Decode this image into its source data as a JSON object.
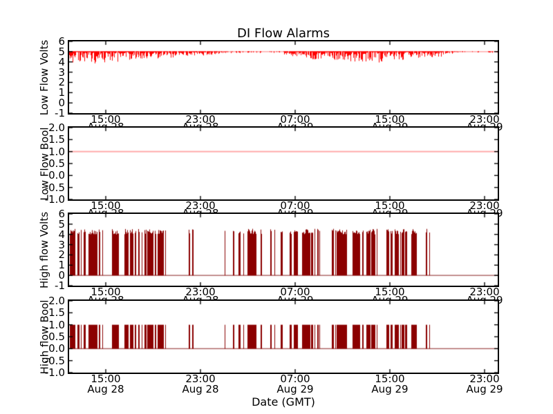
{
  "title": "DI Flow Alarms",
  "x_axis": {
    "label": "Date (GMT)",
    "ticks": [
      {
        "frac": 0.0855,
        "time": "15:00",
        "date": "Aug 28"
      },
      {
        "frac": 0.3065,
        "time": "23:00",
        "date": "Aug 28"
      },
      {
        "frac": 0.5274,
        "time": "07:00",
        "date": "Aug 29"
      },
      {
        "frac": 0.7484,
        "time": "15:00",
        "date": "Aug 29"
      },
      {
        "frac": 0.9694,
        "time": "23:00",
        "date": "Aug 29"
      }
    ]
  },
  "colors": {
    "bright_red": "#ff0000",
    "pale_red": "#ffaaaa",
    "dark_red": "#8b0000",
    "faded_dark_red": "#aa6060",
    "axes": "#000000",
    "background": "#ffffff"
  },
  "chart_data": [
    {
      "type": "line",
      "title": "DI Flow Alarms",
      "ylabel": "Low Flow Volts",
      "ylim": [
        -1,
        6
      ],
      "grid": false,
      "legend": false,
      "yticks": [
        {
          "label": "6",
          "v": 6
        },
        {
          "label": "5",
          "v": 5
        },
        {
          "label": "4",
          "v": 4
        },
        {
          "label": "3",
          "v": 3
        },
        {
          "label": "2",
          "v": 2
        },
        {
          "label": "1",
          "v": 1
        },
        {
          "label": "0",
          "v": 0
        },
        {
          "label": "-1",
          "v": -1
        }
      ],
      "series": [
        {
          "name": "Low Flow Volts",
          "color": "#ff0000",
          "baseline_color": "#ffaaaa",
          "render": "noise_dips",
          "base_value": 5.0,
          "description": "Holds ~5 V with dense downward noise bursts to ~3.7-4.3 V from ~12:00 Aug 28 to ~23:30 Aug 28 and from ~05:00 Aug 29 to ~19:30 Aug 29; nearly flat at 5 V otherwise.",
          "segments": [
            {
              "f0": 0.0,
              "f1": 0.205,
              "density": 0.97,
              "dip0": 1.3,
              "dip1": 0.7
            },
            {
              "f0": 0.205,
              "f1": 0.35,
              "density": 0.9,
              "dip0": 0.7,
              "dip1": 0.3
            },
            {
              "f0": 0.35,
              "f1": 0.5,
              "density": 0.35,
              "dip0": 0.12,
              "dip1": 0.12
            },
            {
              "f0": 0.5,
              "f1": 0.56,
              "density": 0.9,
              "dip0": 0.3,
              "dip1": 0.65
            },
            {
              "f0": 0.56,
              "f1": 0.72,
              "density": 0.97,
              "dip0": 0.7,
              "dip1": 1.05
            },
            {
              "f0": 0.72,
              "f1": 0.87,
              "density": 0.97,
              "dip0": 1.05,
              "dip1": 0.45
            },
            {
              "f0": 0.87,
              "f1": 0.92,
              "density": 0.6,
              "dip0": 0.3,
              "dip1": 0.12
            },
            {
              "f0": 0.92,
              "f1": 1.0,
              "density": 0.25,
              "dip0": 0.08,
              "dip1": 0.08
            }
          ]
        }
      ]
    },
    {
      "type": "line",
      "ylabel": "Low Flow Bool",
      "ylim": [
        -1,
        2
      ],
      "grid": false,
      "legend": false,
      "yticks": [
        {
          "label": "2.0",
          "v": 2
        },
        {
          "label": "1.5",
          "v": 1.5
        },
        {
          "label": "1.0",
          "v": 1
        },
        {
          "label": "0.5",
          "v": 0.5
        },
        {
          "label": "0.0",
          "v": 0
        },
        {
          "label": "-0.5",
          "v": -0.5
        },
        {
          "label": "-1.0",
          "v": -1
        }
      ],
      "series": [
        {
          "name": "Low Flow Bool",
          "color": "#ffaaaa",
          "render": "constant",
          "value": 1.0,
          "description": "Constant 1.0 across the entire time range."
        }
      ]
    },
    {
      "type": "line",
      "ylabel": "High flow Volts",
      "ylim": [
        -1,
        6
      ],
      "grid": false,
      "legend": false,
      "yticks": [
        {
          "label": "6",
          "v": 6
        },
        {
          "label": "5",
          "v": 5
        },
        {
          "label": "4",
          "v": 4
        },
        {
          "label": "3",
          "v": 3
        },
        {
          "label": "2",
          "v": 2
        },
        {
          "label": "1",
          "v": 1
        },
        {
          "label": "0",
          "v": 0
        },
        {
          "label": "-1",
          "v": -1
        }
      ],
      "series": [
        {
          "name": "High flow Volts",
          "color": "#8b0000",
          "baseline_color": "#aa6060",
          "render": "spikes",
          "base_value": 0.0,
          "spike_min": 4.0,
          "spike_max": 4.55,
          "activity_group": "high_flow",
          "description": "0 V baseline with bursts of narrow spikes to ~4.0-4.5 V: dense ~12:00-19:30 Aug 28, two isolated spike pairs near 22:00 Aug 28, sparse ~02:00 Aug 29, dense ~03:00-19:00 Aug 29, quiet afterwards.",
          "segments": [
            {
              "f0": 0.0,
              "f1": 0.21,
              "density": 0.55
            },
            {
              "f0": 0.21,
              "f1": 0.225,
              "density": 0.3
            },
            {
              "f0": 0.2785,
              "f1": 0.2815,
              "density": 1.0
            },
            {
              "f0": 0.287,
              "f1": 0.29,
              "density": 1.0
            },
            {
              "f0": 0.3625,
              "f1": 0.3645,
              "density": 1.0
            },
            {
              "f0": 0.382,
              "f1": 0.384,
              "density": 1.0
            },
            {
              "f0": 0.395,
              "f1": 0.42,
              "density": 0.3
            },
            {
              "f0": 0.42,
              "f1": 0.855,
              "density": 0.55
            }
          ]
        }
      ]
    },
    {
      "type": "line",
      "ylabel": "High flow Bool",
      "ylim": [
        -1,
        2
      ],
      "grid": false,
      "legend": false,
      "yticks": [
        {
          "label": "2.0",
          "v": 2
        },
        {
          "label": "1.5",
          "v": 1.5
        },
        {
          "label": "1.0",
          "v": 1
        },
        {
          "label": "0.5",
          "v": 0.5
        },
        {
          "label": "0.0",
          "v": 0
        },
        {
          "label": "-0.5",
          "v": -0.5
        },
        {
          "label": "-1.0",
          "v": -1
        }
      ],
      "series": [
        {
          "name": "High flow Bool",
          "color": "#8b0000",
          "baseline_color": "#aa6060",
          "render": "spikes",
          "base_value": 0.0,
          "spike_min": 1.0,
          "spike_max": 1.0,
          "activity_group": "high_flow",
          "description": "Boolean 0/1 trace toggling to 1 exactly where High flow Volts spikes occur.",
          "segments": [
            {
              "f0": 0.0,
              "f1": 0.21,
              "density": 0.55
            },
            {
              "f0": 0.21,
              "f1": 0.225,
              "density": 0.3
            },
            {
              "f0": 0.2785,
              "f1": 0.2815,
              "density": 1.0
            },
            {
              "f0": 0.287,
              "f1": 0.29,
              "density": 1.0
            },
            {
              "f0": 0.3625,
              "f1": 0.3645,
              "density": 1.0
            },
            {
              "f0": 0.382,
              "f1": 0.384,
              "density": 1.0
            },
            {
              "f0": 0.395,
              "f1": 0.42,
              "density": 0.3
            },
            {
              "f0": 0.42,
              "f1": 0.855,
              "density": 0.55
            }
          ]
        }
      ]
    }
  ]
}
